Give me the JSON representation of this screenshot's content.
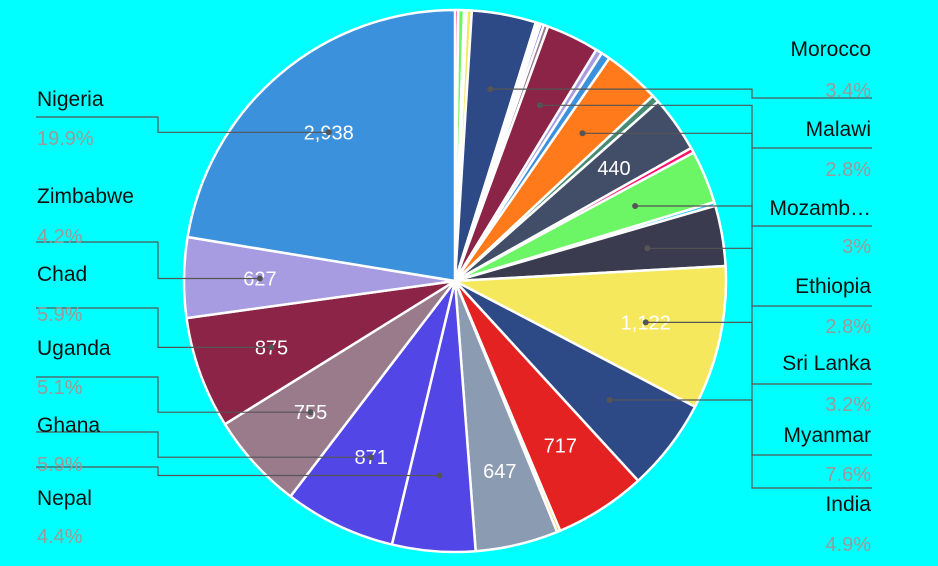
{
  "chart_data": {
    "type": "pie",
    "title": "",
    "slices": [
      {
        "label": "",
        "value": 25,
        "color": "#ff0f6e"
      },
      {
        "label": "",
        "value": 45,
        "color": "#6cf564"
      },
      {
        "label": "",
        "value": 20,
        "color": "#3a3b4f"
      },
      {
        "label": "",
        "value": 40,
        "color": "#f6e85c"
      },
      {
        "label": "Morocco",
        "value": 502,
        "display": "",
        "pct": "3.4%",
        "color": "#2e4a86"
      },
      {
        "label": "",
        "value": 20,
        "color": "#e52222"
      },
      {
        "label": "",
        "value": 20,
        "color": "#ffc020"
      },
      {
        "label": "",
        "value": 25,
        "color": "#5346e6"
      },
      {
        "label": "",
        "value": 35,
        "color": "#9a7b8c"
      },
      {
        "label": "Malawi",
        "value": 413,
        "display": "",
        "pct": "2.8%",
        "color": "#8b2447"
      },
      {
        "label": "",
        "value": 50,
        "color": "#a79be2"
      },
      {
        "label": "",
        "value": 70,
        "color": "#3c91dc"
      },
      {
        "label": "Mozamb…",
        "value": 443,
        "display": "",
        "pct": "3%",
        "color": "#ff7a1a"
      },
      {
        "label": "",
        "value": 60,
        "color": "#468b74"
      },
      {
        "label": "",
        "value": 440,
        "display": "440",
        "color": "#424e68"
      },
      {
        "label": "",
        "value": 40,
        "color": "#ff0f6e"
      },
      {
        "label": "Ethiopia",
        "value": 413,
        "display": "",
        "pct": "2.8%",
        "color": "#6cf564"
      },
      {
        "label": "",
        "value": 30,
        "color": "#1fc7f5"
      },
      {
        "label": "Sri Lanka",
        "value": 472,
        "display": "",
        "pct": "3.2%",
        "color": "#3a3b4f"
      },
      {
        "label": "Myanmar",
        "value": 1122,
        "display": "1,122",
        "pct": "7.6%",
        "color": "#f6e85c"
      },
      {
        "label": "India",
        "value": 723,
        "display": "",
        "pct": "4.9%",
        "color": "#2e4a86"
      },
      {
        "label": "",
        "value": 717,
        "display": "717",
        "color": "#e52222"
      },
      {
        "label": "",
        "value": 25,
        "color": "#ffc020"
      },
      {
        "label": "",
        "value": 647,
        "display": "647",
        "color": "#8a9bb2"
      },
      {
        "label": "Nepal",
        "value": 650,
        "display": "",
        "pct": "4.4%",
        "color": "#5346e6"
      },
      {
        "label": "Ghana",
        "value": 871,
        "display": "871",
        "pct": "5.9%",
        "color": "#5346e6"
      },
      {
        "label": "Uganda",
        "value": 755,
        "display": "755",
        "pct": "5.1%",
        "color": "#9a7b8c"
      },
      {
        "label": "Chad",
        "value": 875,
        "display": "875",
        "pct": "5.9%",
        "color": "#8b2447"
      },
      {
        "label": "Zimbabwe",
        "value": 627,
        "display": "627",
        "pct": "4.2%",
        "color": "#a79be2"
      },
      {
        "label": "Nigeria",
        "value": 2938,
        "display": "2,938",
        "pct": "19.9%",
        "color": "#3c91dc"
      }
    ]
  }
}
